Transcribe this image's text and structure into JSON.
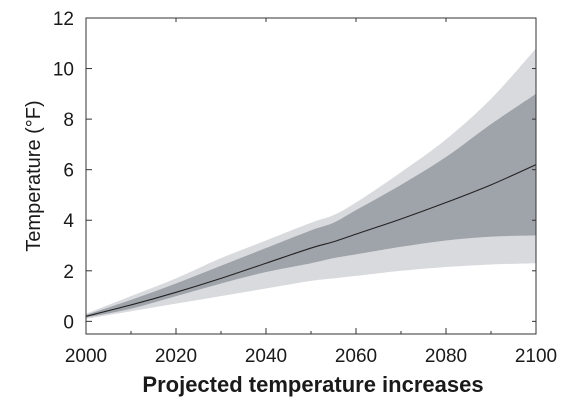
{
  "chart_data": {
    "type": "area",
    "title": "Projected temperature increases",
    "xlabel": "",
    "ylabel": "Temperature (°F)",
    "xlim": [
      2000,
      2100
    ],
    "ylim": [
      -0.5,
      12
    ],
    "xticks": [
      2000,
      2020,
      2040,
      2060,
      2080,
      2100
    ],
    "yticks": [
      0,
      2,
      4,
      6,
      8,
      10,
      12
    ],
    "grid": false,
    "x": [
      2000,
      2010,
      2020,
      2030,
      2040,
      2050,
      2055,
      2060,
      2070,
      2080,
      2090,
      2100
    ],
    "bands": [
      {
        "name": "",
        "color": "#d9dadd",
        "upper": [
          0.3,
          1.0,
          1.7,
          2.5,
          3.2,
          3.9,
          4.2,
          4.7,
          5.9,
          7.2,
          8.8,
          10.8
        ],
        "lower": [
          0.1,
          0.4,
          0.7,
          1.0,
          1.3,
          1.6,
          1.7,
          1.8,
          2.0,
          2.15,
          2.25,
          2.3
        ]
      },
      {
        "name": "",
        "color": "#9fa3aa",
        "upper": [
          0.25,
          0.85,
          1.5,
          2.2,
          2.9,
          3.6,
          3.9,
          4.4,
          5.4,
          6.5,
          7.8,
          9.0
        ],
        "lower": [
          0.15,
          0.5,
          1.0,
          1.5,
          1.95,
          2.3,
          2.5,
          2.65,
          2.95,
          3.2,
          3.35,
          3.4
        ]
      }
    ],
    "series": [
      {
        "name": "",
        "color": "#222222",
        "values": [
          0.2,
          0.65,
          1.15,
          1.7,
          2.3,
          2.9,
          3.15,
          3.45,
          4.05,
          4.7,
          5.4,
          6.2
        ]
      }
    ]
  }
}
